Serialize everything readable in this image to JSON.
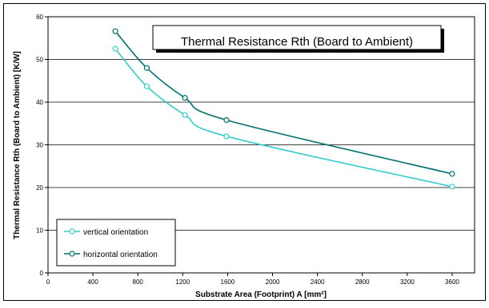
{
  "chart_data": {
    "type": "line",
    "title": "Thermal Resistance Rth (Board to Ambient)",
    "xlabel": "Substrate Area (Footprint) A [mm²]",
    "ylabel": "Thermal Resistance Rth (Board to Ambient) [K/W]",
    "xlim": [
      0,
      3800
    ],
    "ylim": [
      0,
      60
    ],
    "xticks": [
      0,
      400,
      800,
      1200,
      1600,
      2000,
      2400,
      2800,
      3200,
      3600
    ],
    "yticks": [
      0,
      10,
      20,
      30,
      40,
      50,
      60
    ],
    "grid": true,
    "legend_position": "bottom-left",
    "series": [
      {
        "name": "vertical orientation",
        "color": "#33cccc",
        "x": [
          600,
          880,
          1220,
          1590,
          3600
        ],
        "y": [
          52.5,
          43.7,
          37.0,
          32.0,
          20.2
        ]
      },
      {
        "name": "horizontal orientation",
        "color": "#007070",
        "x": [
          600,
          880,
          1220,
          1590,
          3600
        ],
        "y": [
          56.6,
          48.0,
          41.0,
          35.8,
          23.2
        ]
      }
    ]
  }
}
